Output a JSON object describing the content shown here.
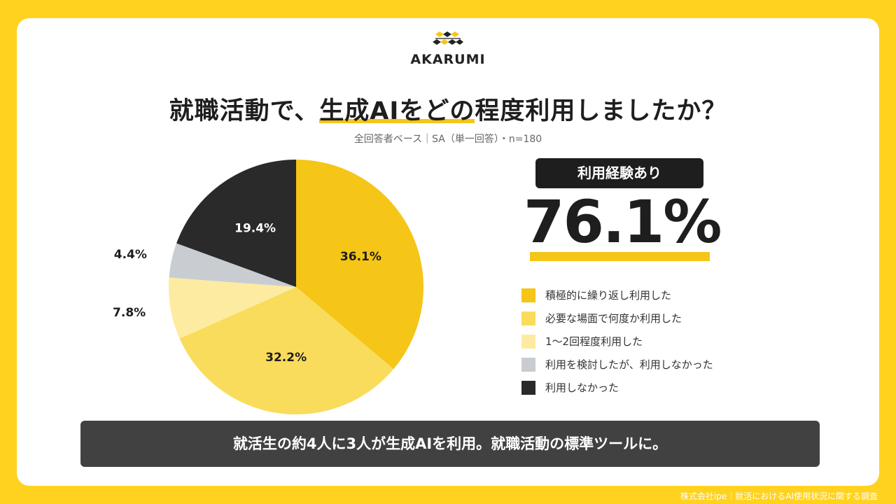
{
  "brand": {
    "name": "AKARUMI",
    "accent_color": "#F5C518"
  },
  "title": {
    "pre": "就職活動で、",
    "highlight": "生成AIをどの",
    "post": "程度利用しましたか？"
  },
  "subtitle": "全回答者ベース｜SA（単一回答）・n=180",
  "summary": {
    "badge": "利用経験あり",
    "value": "76.1%"
  },
  "banner": "就活生の約4人に3人が生成AIを利用。就職活動の標準ツールに。",
  "footer": "株式会社ipe｜就活におけるAI使用状況に関する調査",
  "chart_data": {
    "type": "pie",
    "title": "就職活動で、生成AIをどの程度利用しましたか？",
    "legend_position": "right",
    "slices": [
      {
        "label": "積極的に繰り返し利用した",
        "value": 36.1,
        "display": "36.1%",
        "color": "#F5C518"
      },
      {
        "label": "必要な場面で何度か利用した",
        "value": 32.2,
        "display": "32.2%",
        "color": "#FADC5C"
      },
      {
        "label": "1〜2回程度利用した",
        "value": 7.8,
        "display": "7.8%",
        "color": "#FDEBA2"
      },
      {
        "label": "利用を検討したが、利用しなかった",
        "value": 4.4,
        "display": "4.4%",
        "color": "#C9CDD2"
      },
      {
        "label": "利用しなかった",
        "value": 19.4,
        "display": "19.4%",
        "color": "#2A2A2A"
      }
    ]
  }
}
